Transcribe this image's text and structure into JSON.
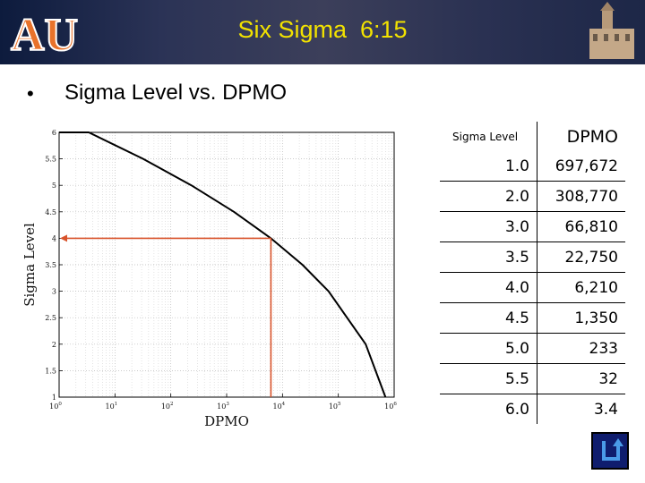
{
  "slide": {
    "title": "Six Sigma  6:15",
    "bullet": "•",
    "subtitle": "Sigma Level vs. DPMO",
    "logo_text": "AU",
    "colors": {
      "title": "#f2e200",
      "banner": "#2b3356",
      "curve": "#000000",
      "annotation": "#d9532b",
      "logo_orange": "#e8722a"
    }
  },
  "chart_data": {
    "type": "line",
    "xlabel": "DPMO",
    "ylabel": "Sigma Level",
    "xscale": "log",
    "xlim": [
      1,
      1000000
    ],
    "ylim": [
      1,
      6
    ],
    "grid": true,
    "xticks": [
      {
        "value": 1,
        "base": "10",
        "exp": "0"
      },
      {
        "value": 10,
        "base": "10",
        "exp": "1"
      },
      {
        "value": 100,
        "base": "10",
        "exp": "2"
      },
      {
        "value": 1000,
        "base": "10",
        "exp": "3"
      },
      {
        "value": 10000,
        "base": "10",
        "exp": "4"
      },
      {
        "value": 100000,
        "base": "10",
        "exp": "5"
      },
      {
        "value": 1000000,
        "base": "10",
        "exp": "6"
      }
    ],
    "yticks": [
      "1",
      "1.5",
      "2",
      "2.5",
      "3",
      "3.5",
      "4",
      "4.5",
      "5",
      "5.5",
      "6"
    ],
    "series": [
      {
        "x": [
          3.4,
          32,
          233,
          1350,
          6210,
          22750,
          66810,
          308770,
          697672
        ],
        "y": [
          6.0,
          5.5,
          5.0,
          4.5,
          4.0,
          3.5,
          3.0,
          2.0,
          1.0
        ]
      }
    ],
    "annotation": {
      "x": 6210,
      "y": 4.0
    }
  },
  "table": {
    "headers": {
      "sigma": "Sigma Level",
      "dpmo": "DPMO"
    },
    "rows": [
      {
        "sigma": "1.0",
        "dpmo": "697,672"
      },
      {
        "sigma": "2.0",
        "dpmo": "308,770"
      },
      {
        "sigma": "3.0",
        "dpmo": "66,810"
      },
      {
        "sigma": "3.5",
        "dpmo": "22,750"
      },
      {
        "sigma": "4.0",
        "dpmo": "6,210"
      },
      {
        "sigma": "4.5",
        "dpmo": "1,350"
      },
      {
        "sigma": "5.0",
        "dpmo": "233"
      },
      {
        "sigma": "5.5",
        "dpmo": "32"
      },
      {
        "sigma": "6.0",
        "dpmo": "3.4"
      }
    ]
  },
  "return_button": {
    "icon": "return-arrow-icon"
  }
}
